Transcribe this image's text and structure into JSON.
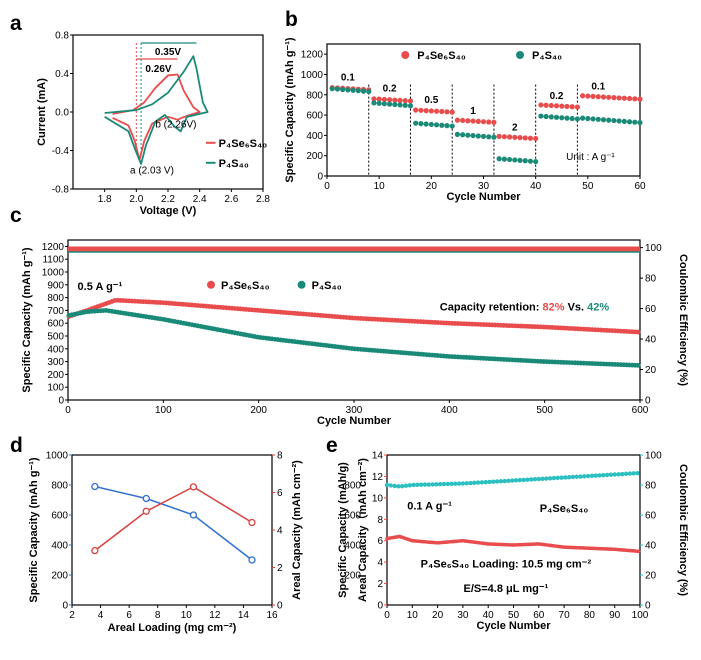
{
  "colors": {
    "red": "#e84c4c",
    "teal": "#1a8a78",
    "blue": "#2f6fcf",
    "cyan": "#2bbfc0",
    "darkred": "#d94040"
  },
  "chart_data": [
    {
      "panel": "a",
      "type": "line",
      "xlabel": "Voltage (V)",
      "ylabel": "Current (mA)",
      "xlim": [
        1.6,
        2.8
      ],
      "ylim": [
        -0.8,
        0.8
      ],
      "xticks": [
        "1.8",
        "2.0",
        "2.2",
        "2.4",
        "2.6",
        "2.8"
      ],
      "yticks": [
        "-0.8",
        "-0.4",
        "0.0",
        "0.4",
        "0.8"
      ],
      "series": [
        {
          "name": "P₄Se₆S₄₀",
          "color": "red",
          "points": [
            [
              1.85,
              -0.06
            ],
            [
              1.95,
              -0.14
            ],
            [
              1.99,
              -0.3
            ],
            [
              2.02,
              -0.5
            ],
            [
              2.05,
              -0.3
            ],
            [
              2.1,
              -0.12
            ],
            [
              2.2,
              -0.05
            ],
            [
              2.26,
              -0.08
            ],
            [
              2.32,
              -0.04
            ],
            [
              2.4,
              0.0
            ],
            [
              2.36,
              0.05
            ],
            [
              2.3,
              0.22
            ],
            [
              2.26,
              0.39
            ],
            [
              2.2,
              0.38
            ],
            [
              2.12,
              0.25
            ],
            [
              2.05,
              0.1
            ],
            [
              1.98,
              0.02
            ],
            [
              1.85,
              -0.02
            ]
          ]
        },
        {
          "name": "P₄S₄₀",
          "color": "teal",
          "points": [
            [
              1.8,
              -0.05
            ],
            [
              1.95,
              -0.2
            ],
            [
              2.0,
              -0.42
            ],
            [
              2.03,
              -0.54
            ],
            [
              2.06,
              -0.35
            ],
            [
              2.12,
              -0.1
            ],
            [
              2.18,
              -0.03
            ],
            [
              2.24,
              -0.15
            ],
            [
              2.28,
              -0.2
            ],
            [
              2.32,
              -0.05
            ],
            [
              2.45,
              0.0
            ],
            [
              2.42,
              0.1
            ],
            [
              2.38,
              0.45
            ],
            [
              2.36,
              0.58
            ],
            [
              2.3,
              0.42
            ],
            [
              2.2,
              0.2
            ],
            [
              2.1,
              0.08
            ],
            [
              2.0,
              0.02
            ],
            [
              1.8,
              -0.01
            ]
          ]
        }
      ],
      "legend": [
        {
          "text": "P₄Se₆S₄₀",
          "color": "red"
        },
        {
          "text": "P₄S₄₀",
          "color": "teal"
        }
      ],
      "annotations": [
        "0.35V",
        "0.26V",
        "b (2.26V)",
        "a (2.03 V)"
      ]
    },
    {
      "panel": "b",
      "type": "scatter",
      "xlabel": "Cycle Number",
      "ylabel": "Specific Capacity (mAh g⁻¹)",
      "xlim": [
        0,
        60
      ],
      "ylim": [
        0,
        1300
      ],
      "xticks": [
        "0",
        "10",
        "20",
        "30",
        "40",
        "50",
        "60"
      ],
      "yticks": [
        "0",
        "200",
        "400",
        "600",
        "800",
        "1000",
        "1200"
      ],
      "rates": [
        "0.1",
        "0.2",
        "0.5",
        "1",
        "2",
        "0.2",
        "0.1"
      ],
      "unit_note": "Unit : A g⁻¹",
      "series": [
        {
          "name": "P₄Se₆S₄₀",
          "color": "red",
          "segments": [
            [
              1,
              8,
              870
            ],
            [
              9,
              16,
              760
            ],
            [
              17,
              24,
              650
            ],
            [
              25,
              32,
              550
            ],
            [
              33,
              40,
              390
            ],
            [
              41,
              48,
              700
            ],
            [
              49,
              60,
              790
            ]
          ]
        },
        {
          "name": "P₄S₄₀",
          "color": "teal",
          "segments": [
            [
              1,
              8,
              860
            ],
            [
              9,
              16,
              720
            ],
            [
              17,
              24,
              520
            ],
            [
              25,
              32,
              410
            ],
            [
              33,
              40,
              170
            ],
            [
              41,
              48,
              590
            ],
            [
              49,
              60,
              570
            ]
          ]
        }
      ]
    },
    {
      "panel": "c",
      "type": "scatter",
      "xlabel": "Cycle Number",
      "ylabel": "Specific Capacity (mAh g⁻¹)",
      "y2label": "Coulombic Efficiency (%)",
      "xlim": [
        0,
        600
      ],
      "ylim": [
        0,
        1250
      ],
      "y2lim": [
        0,
        105
      ],
      "xticks": [
        "0",
        "100",
        "200",
        "300",
        "400",
        "500",
        "600"
      ],
      "yticks": [
        "0",
        "100",
        "200",
        "300",
        "400",
        "500",
        "600",
        "700",
        "800",
        "900",
        "1000",
        "1100",
        "1200"
      ],
      "y2ticks": [
        "0",
        "20",
        "40",
        "60",
        "80",
        "100"
      ],
      "rate_note": "0.5 A g⁻¹",
      "retention": {
        "label": "Capacity retention:",
        "a": "82%",
        "vs": "Vs.",
        "b": "42%"
      },
      "series": [
        {
          "name": "P₄Se₆S₄₀",
          "color": "red",
          "points": [
            [
              0,
              650
            ],
            [
              20,
              700
            ],
            [
              50,
              780
            ],
            [
              100,
              760
            ],
            [
              200,
              700
            ],
            [
              300,
              640
            ],
            [
              400,
              600
            ],
            [
              500,
              570
            ],
            [
              600,
              530
            ]
          ]
        },
        {
          "name": "P₄S₄₀",
          "color": "teal",
          "points": [
            [
              0,
              660
            ],
            [
              20,
              690
            ],
            [
              40,
              700
            ],
            [
              100,
              630
            ],
            [
              150,
              560
            ],
            [
              200,
              490
            ],
            [
              300,
              400
            ],
            [
              400,
              340
            ],
            [
              500,
              300
            ],
            [
              600,
              270
            ]
          ]
        },
        {
          "name": "CE",
          "color": "red",
          "points": [
            [
              0,
              1180
            ],
            [
              600,
              1180
            ]
          ]
        }
      ]
    },
    {
      "panel": "d",
      "type": "line",
      "xlabel": "Areal Loading (mg cm⁻²)",
      "ylabel": "Specific Capacity (mAh g⁻¹)",
      "y2label": "Areal Capacity (mAh cm⁻²)",
      "xlim": [
        2,
        16
      ],
      "ylim": [
        0,
        1000
      ],
      "y2lim": [
        0,
        8
      ],
      "xticks": [
        "2",
        "4",
        "6",
        "8",
        "10",
        "12",
        "14",
        "16"
      ],
      "yticks": [
        "0",
        "200",
        "400",
        "600",
        "800",
        "1000"
      ],
      "y2ticks": [
        "0",
        "2",
        "4",
        "6",
        "8"
      ],
      "series": [
        {
          "name": "Specific Capacity",
          "color": "blue",
          "x": [
            3.6,
            7.2,
            10.5,
            14.6
          ],
          "values": [
            790,
            710,
            600,
            300
          ]
        },
        {
          "name": "Areal Capacity",
          "color": "darkred",
          "x": [
            3.6,
            7.2,
            10.5,
            14.6
          ],
          "values": [
            2.9,
            5.0,
            6.3,
            4.4
          ]
        }
      ]
    },
    {
      "panel": "e",
      "type": "scatter",
      "xlabel": "Cycle Number",
      "ylabel": "Specific Capacity (mAh/g)",
      "ylabel2": "Areal Capacity（mAh cm⁻²)",
      "y2label": "Coulombic Efficiency (%)",
      "xlim": [
        0,
        100
      ],
      "ylim": [
        0,
        14
      ],
      "y2lim": [
        0,
        100
      ],
      "xticks": [
        "0",
        "10",
        "20",
        "30",
        "40",
        "50",
        "60",
        "70",
        "80",
        "90",
        "100"
      ],
      "yticks": [
        "0",
        "2",
        "4",
        "6",
        "8",
        "10",
        "12",
        "14"
      ],
      "yticks_spec": [
        "200",
        "400",
        "600",
        "800"
      ],
      "y2ticks": [
        "0",
        "20",
        "40",
        "60",
        "80",
        "100"
      ],
      "rate_note": "0.1 A g⁻¹",
      "title_label": "P₄Se₆S₄₀",
      "loading_label": "P₄Se₆S₄₀  Loading: 10.5 mg cm⁻²",
      "es_label": "E/S=4.8 μL mg⁻¹",
      "series": [
        {
          "name": "Areal capacity",
          "color": "red",
          "points": [
            [
              0,
              6.2
            ],
            [
              5,
              6.4
            ],
            [
              10,
              6.0
            ],
            [
              20,
              5.8
            ],
            [
              30,
              6.0
            ],
            [
              40,
              5.7
            ],
            [
              50,
              5.6
            ],
            [
              60,
              5.7
            ],
            [
              70,
              5.4
            ],
            [
              80,
              5.3
            ],
            [
              90,
              5.2
            ],
            [
              100,
              5.0
            ]
          ]
        },
        {
          "name": "CE",
          "color": "cyan",
          "points": [
            [
              0,
              80
            ],
            [
              5,
              79
            ],
            [
              10,
              80
            ],
            [
              30,
              81
            ],
            [
              50,
              83
            ],
            [
              70,
              85
            ],
            [
              90,
              87
            ],
            [
              100,
              88
            ]
          ]
        }
      ]
    }
  ]
}
